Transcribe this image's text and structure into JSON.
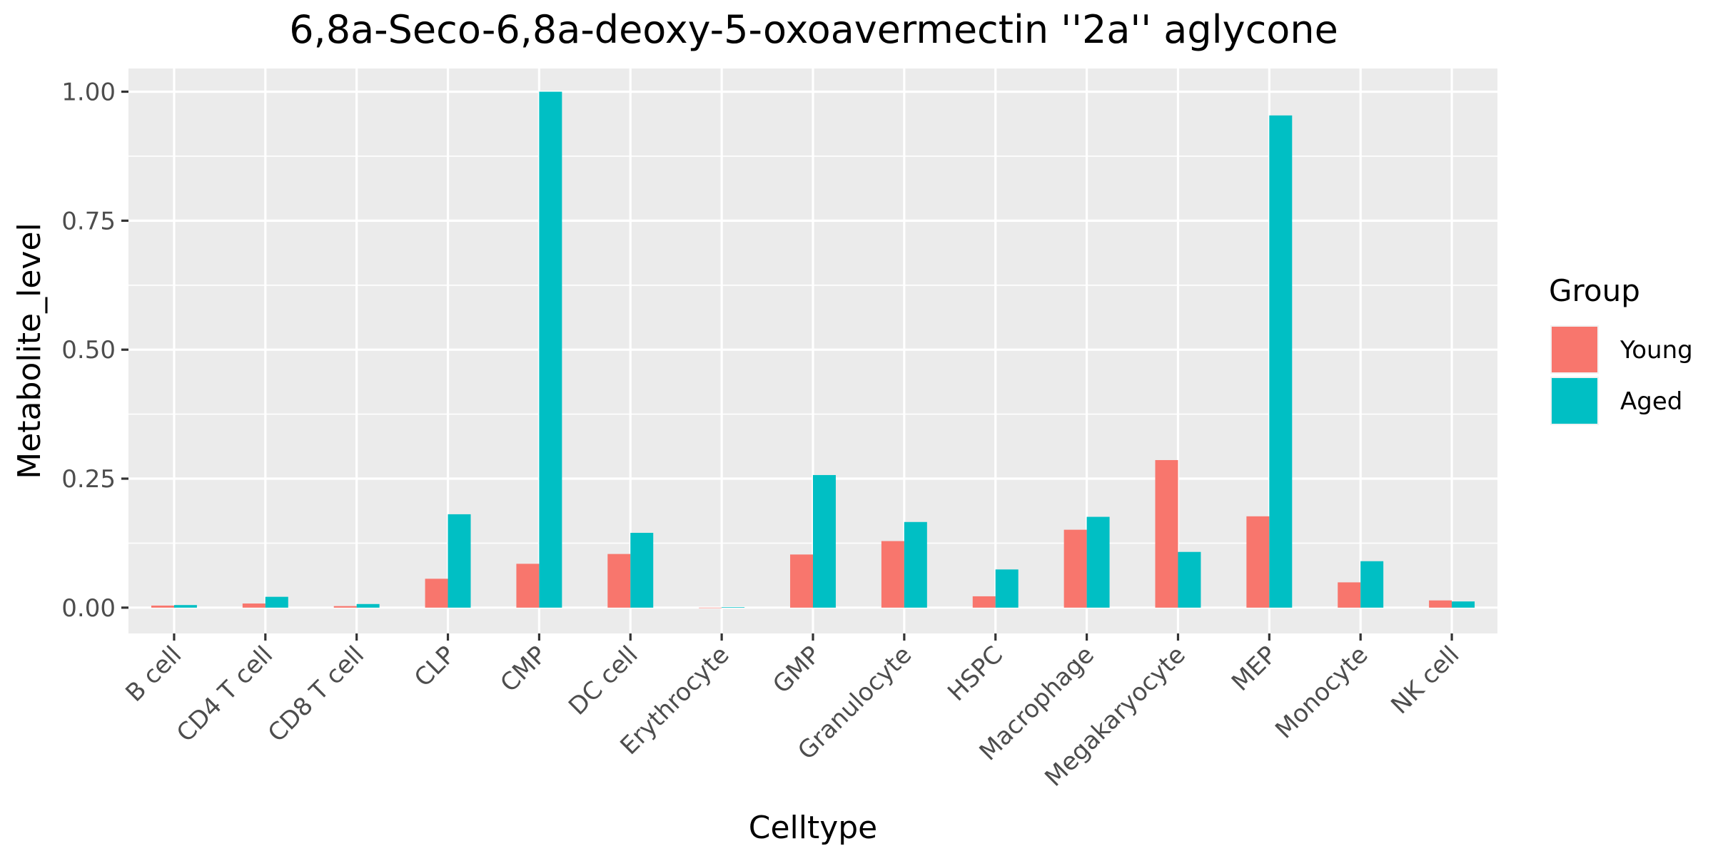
{
  "chart_data": {
    "type": "bar",
    "title": "6,8a-Seco-6,8a-deoxy-5-oxoavermectin ''2a'' aglycone",
    "xlabel": "Celltype",
    "ylabel": "Metabolite_level",
    "ylim": [
      -0.05,
      1.045
    ],
    "yticks": [
      0.0,
      0.25,
      0.5,
      0.75,
      1.0
    ],
    "ytick_labels": [
      "0.00",
      "0.25",
      "0.50",
      "0.75",
      "1.00"
    ],
    "grid": true,
    "legend": {
      "title": "Group",
      "position": "right"
    },
    "categories": [
      "B cell",
      "CD4 T cell",
      "CD8 T cell",
      "CLP",
      "CMP",
      "DC cell",
      "Erythrocyte",
      "GMP",
      "Granulocyte",
      "HSPC",
      "Macrophage",
      "Megakaryocyte",
      "MEP",
      "Monocyte",
      "NK cell"
    ],
    "series": [
      {
        "name": "Young",
        "color": "#F8766D",
        "values": [
          0.004,
          0.008,
          0.003,
          0.056,
          0.085,
          0.104,
          0.0,
          0.103,
          0.129,
          0.022,
          0.151,
          0.286,
          0.177,
          0.049,
          0.014
        ]
      },
      {
        "name": "Aged",
        "color": "#00BFC4",
        "values": [
          0.005,
          0.021,
          0.007,
          0.181,
          1.0,
          0.145,
          0.001,
          0.257,
          0.166,
          0.074,
          0.176,
          0.108,
          0.954,
          0.09,
          0.012
        ]
      }
    ]
  }
}
